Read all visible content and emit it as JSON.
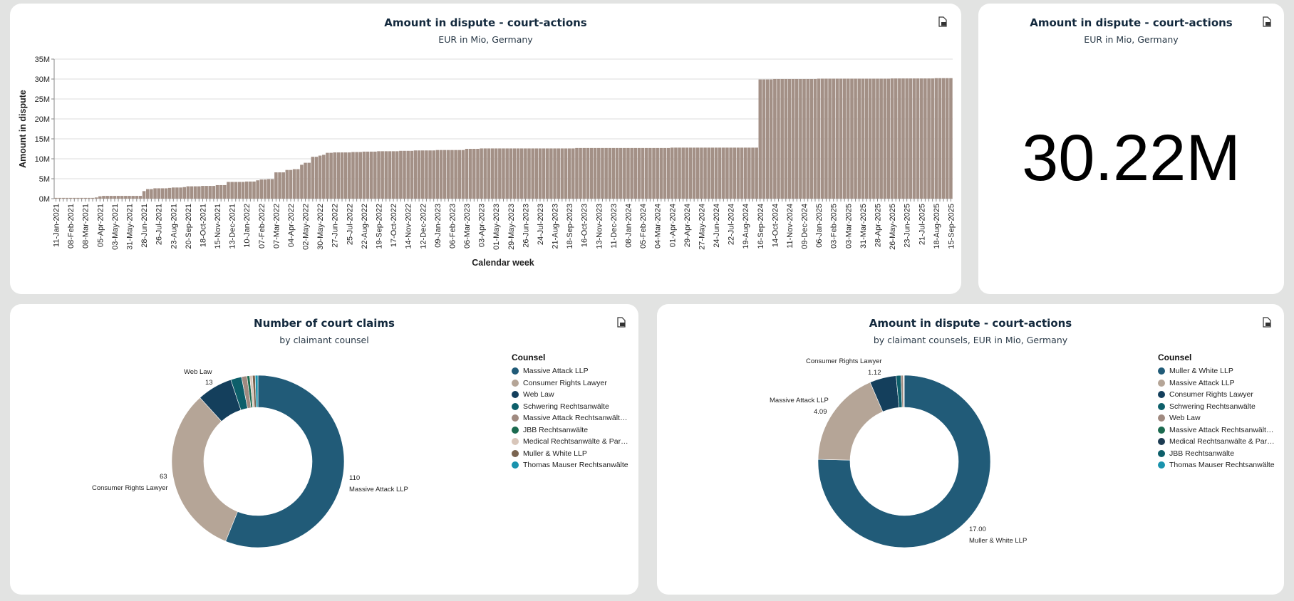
{
  "colors": {
    "bar": "#a39086",
    "grid": "#dedede",
    "background": "#e2e3e2"
  },
  "export_icon": "export-file-icon",
  "cards": {
    "timeline": {
      "title": "Amount in dispute - court-actions",
      "subtitle": "EUR in Mio, Germany"
    },
    "kpi": {
      "title": "Amount in dispute - court-actions",
      "subtitle": "EUR in Mio, Germany",
      "value": "30.22M"
    },
    "claims": {
      "title": "Number of court claims",
      "subtitle": "by claimant counsel"
    },
    "amount_by_counsel": {
      "title": "Amount in dispute - court-actions",
      "subtitle": "by claimant counsels, EUR in Mio, Germany"
    }
  },
  "chart_data": [
    {
      "type": "bar",
      "xlabel": "Calendar week",
      "ylabel": "Amount in dispute",
      "ylim": [
        0,
        35
      ],
      "y_unit": "M",
      "yticks": [
        "0M",
        "5M",
        "10M",
        "15M",
        "20M",
        "25M",
        "30M",
        "35M"
      ],
      "grid": true,
      "x_interval": "weekly",
      "x_tick_labels": [
        "11-Jan-2021",
        "08-Feb-2021",
        "08-Mar-2021",
        "05-Apr-2021",
        "03-May-2021",
        "31-May-2021",
        "28-Jun-2021",
        "26-Jul-2021",
        "23-Aug-2021",
        "20-Sep-2021",
        "18-Oct-2021",
        "15-Nov-2021",
        "13-Dec-2021",
        "10-Jan-2022",
        "07-Feb-2022",
        "07-Mar-2022",
        "04-Apr-2022",
        "02-May-2022",
        "30-May-2022",
        "27-Jun-2022",
        "25-Jul-2022",
        "22-Aug-2022",
        "19-Sep-2022",
        "17-Oct-2022",
        "14-Nov-2022",
        "12-Dec-2022",
        "09-Jan-2023",
        "06-Feb-2023",
        "06-Mar-2023",
        "03-Apr-2023",
        "01-May-2023",
        "29-May-2023",
        "26-Jun-2023",
        "24-Jul-2023",
        "21-Aug-2023",
        "18-Sep-2023",
        "16-Oct-2023",
        "13-Nov-2023",
        "11-Dec-2023",
        "08-Jan-2024",
        "05-Feb-2024",
        "04-Mar-2024",
        "01-Apr-2024",
        "29-Apr-2024",
        "27-May-2024",
        "24-Jun-2024",
        "22-Jul-2024",
        "19-Aug-2024",
        "16-Sep-2024",
        "14-Oct-2024",
        "11-Nov-2024",
        "09-Dec-2024",
        "06-Jan-2025",
        "03-Feb-2025",
        "03-Mar-2025",
        "31-Mar-2025",
        "28-Apr-2025",
        "26-May-2025",
        "23-Jun-2025",
        "21-Jul-2025",
        "18-Aug-2025",
        "15-Sep-2025"
      ],
      "last_week": "15-Sep-2025",
      "steps_in_millions": [
        [
          "11-Jan-2021",
          0.2
        ],
        [
          "29-Mar-2021",
          0.3
        ],
        [
          "05-Apr-2021",
          0.6
        ],
        [
          "12-Apr-2021",
          0.7
        ],
        [
          "28-Jun-2021",
          1.9
        ],
        [
          "05-Jul-2021",
          2.4
        ],
        [
          "19-Jul-2021",
          2.6
        ],
        [
          "16-Aug-2021",
          2.7
        ],
        [
          "23-Aug-2021",
          2.8
        ],
        [
          "13-Sep-2021",
          2.9
        ],
        [
          "20-Sep-2021",
          3.1
        ],
        [
          "18-Oct-2021",
          3.2
        ],
        [
          "15-Nov-2021",
          3.4
        ],
        [
          "06-Dec-2021",
          4.2
        ],
        [
          "10-Jan-2022",
          4.3
        ],
        [
          "31-Jan-2022",
          4.6
        ],
        [
          "07-Feb-2022",
          4.8
        ],
        [
          "21-Feb-2022",
          4.9
        ],
        [
          "07-Mar-2022",
          6.6
        ],
        [
          "28-Mar-2022",
          7.2
        ],
        [
          "11-Apr-2022",
          7.4
        ],
        [
          "25-Apr-2022",
          8.5
        ],
        [
          "02-May-2022",
          9.0
        ],
        [
          "16-May-2022",
          10.5
        ],
        [
          "30-May-2022",
          10.8
        ],
        [
          "06-Jun-2022",
          11.0
        ],
        [
          "13-Jun-2022",
          11.5
        ],
        [
          "27-Jun-2022",
          11.6
        ],
        [
          "01-Aug-2022",
          11.7
        ],
        [
          "22-Aug-2022",
          11.8
        ],
        [
          "19-Sep-2022",
          11.9
        ],
        [
          "31-Oct-2022",
          12.0
        ],
        [
          "28-Nov-2022",
          12.1
        ],
        [
          "09-Jan-2023",
          12.2
        ],
        [
          "06-Mar-2023",
          12.5
        ],
        [
          "03-Apr-2023",
          12.6
        ],
        [
          "02-Oct-2023",
          12.7
        ],
        [
          "01-Apr-2024",
          12.8
        ],
        [
          "16-Sep-2024",
          29.9
        ],
        [
          "14-Oct-2024",
          30.0
        ],
        [
          "06-Jan-2025",
          30.1
        ],
        [
          "26-May-2025",
          30.15
        ],
        [
          "18-Aug-2025",
          30.22
        ]
      ]
    },
    {
      "type": "pie",
      "legend_title": "Counsel",
      "legend_position": "right",
      "donut": true,
      "slices": [
        {
          "label": "Massive Attack LLP",
          "value": 110,
          "color": "#215b78",
          "shown": "110"
        },
        {
          "label": "Consumer Rights Lawyer",
          "value": 63,
          "color": "#b5a597",
          "shown": "63"
        },
        {
          "label": "Web Law",
          "value": 13,
          "color": "#143f5c",
          "shown": "13"
        },
        {
          "label": "Schwering Rechtsanwälte",
          "value": 4,
          "color": "#0d5f6a"
        },
        {
          "label": "Massive Attack Rechtsanwält…",
          "value": 2,
          "color": "#a08a80"
        },
        {
          "label": "JBB Rechtsanwälte",
          "value": 1,
          "color": "#1b6a4f"
        },
        {
          "label": "Medical Rechtsanwälte & Par…",
          "value": 1,
          "color": "#d8c6ba"
        },
        {
          "label": "Muller & White LLP",
          "value": 1,
          "color": "#7a6450"
        },
        {
          "label": "Thomas Mauser Rechtsanwälte",
          "value": 1,
          "color": "#1a93ad"
        }
      ]
    },
    {
      "type": "pie",
      "legend_title": "Counsel",
      "legend_position": "right",
      "donut": true,
      "slices": [
        {
          "label": "Muller & White LLP",
          "value": 17.0,
          "color": "#215b78",
          "shown": "17.00"
        },
        {
          "label": "Massive Attack LLP",
          "value": 4.09,
          "color": "#b5a597",
          "shown": "4.09"
        },
        {
          "label": "Consumer Rights Lawyer",
          "value": 1.12,
          "color": "#143f5c",
          "shown": "1.12"
        },
        {
          "label": "Schwering Rechtsanwälte",
          "value": 0.2,
          "color": "#0d5f6a"
        },
        {
          "label": "Web Law",
          "value": 0.1,
          "color": "#a08a80"
        },
        {
          "label": "Massive Attack Rechtsanwält…",
          "value": 0.01,
          "color": "#1b6a4f"
        },
        {
          "label": "Medical Rechtsanwälte & Par…",
          "value": 0.01,
          "color": "#1c3b52"
        },
        {
          "label": "JBB Rechtsanwälte",
          "value": 0.01,
          "color": "#0d5f6a"
        },
        {
          "label": "Thomas Mauser Rechtsanwälte",
          "value": 0.01,
          "color": "#1a93ad"
        }
      ]
    }
  ]
}
